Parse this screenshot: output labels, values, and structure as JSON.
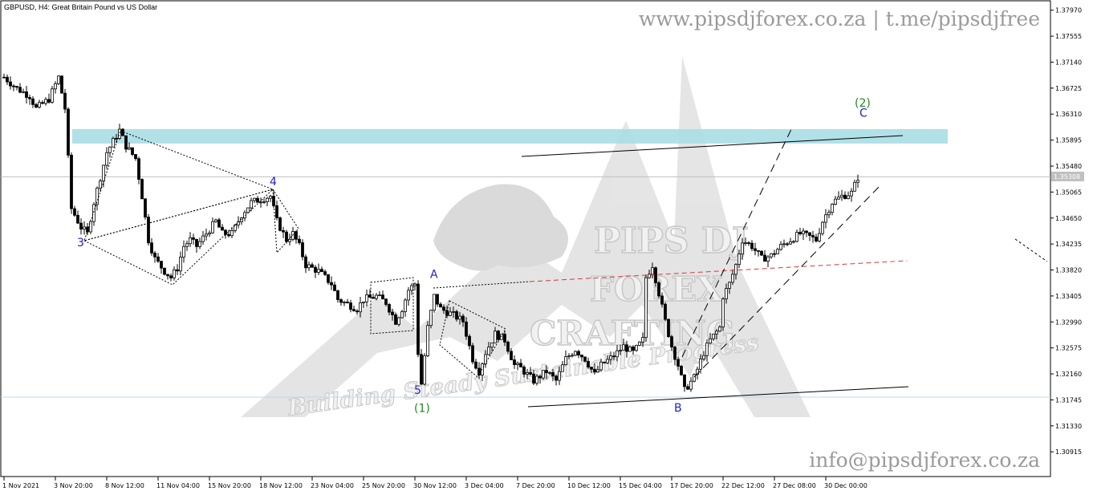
{
  "symbol_label": "GBPUSD, H4:  Great Britain Pound vs US Dollar",
  "watermark_top": "www.pipsdjforex.co.za | t.me/pipsdjfree",
  "watermark_bottom": "info@pipsdjforex.co.za",
  "logo": {
    "line1": "PIPS DJ",
    "line2": "FOREX",
    "line3": "CRAFTING",
    "tagline": "Building Steady Sustainable Progress"
  },
  "colors": {
    "up": "#000000",
    "down": "#000000",
    "zone": "#a9dde4",
    "pivot": "#d43a3a",
    "wave_main": "#2222cc",
    "wave_major": "#1e8a1e"
  },
  "chart_data": {
    "type": "candlestick",
    "ylim": [
      1.3052,
      1.3812
    ],
    "current_price": "1.35308",
    "y_ticks": [
      "1.37970",
      "1.37555",
      "1.37140",
      "1.36725",
      "1.36310",
      "1.35895",
      "1.35480",
      "1.35065",
      "1.34650",
      "1.34235",
      "1.33820",
      "1.33405",
      "1.32990",
      "1.32575",
      "1.32160",
      "1.31745",
      "1.31330",
      "1.30915"
    ],
    "y_tick_values": [
      1.3797,
      1.37555,
      1.3714,
      1.36725,
      1.3631,
      1.35895,
      1.3548,
      1.35065,
      1.3465,
      1.34235,
      1.3382,
      1.33405,
      1.3299,
      1.32575,
      1.3216,
      1.31745,
      1.3133,
      1.30915
    ],
    "x_ticks": [
      "1 Nov 2021",
      "3 Nov 20:00",
      "8 Nov 12:00",
      "11 Nov 04:00",
      "15 Nov 20:00",
      "18 Nov 12:00",
      "23 Nov 04:00",
      "25 Nov 20:00",
      "30 Nov 12:00",
      "3 Dec 04:00",
      "7 Dec 20:00",
      "10 Dec 12:00",
      "15 Dec 04:00",
      "17 Dec 20:00",
      "22 Dec 12:00",
      "27 Dec 08:00",
      "30 Dec 00:00"
    ],
    "x_tick_index": [
      0,
      16,
      32,
      48,
      64,
      80,
      96,
      112,
      128,
      144,
      160,
      176,
      192,
      208,
      224,
      240,
      256
    ],
    "n_bars": 267,
    "anchors": [
      [
        0,
        1.369
      ],
      [
        4,
        1.3672
      ],
      [
        8,
        1.366
      ],
      [
        10,
        1.364
      ],
      [
        14,
        1.3655
      ],
      [
        17,
        1.369
      ],
      [
        19,
        1.364
      ],
      [
        21,
        1.348
      ],
      [
        24,
        1.345
      ],
      [
        26,
        1.344
      ],
      [
        28,
        1.349
      ],
      [
        32,
        1.357
      ],
      [
        36,
        1.3605
      ],
      [
        38,
        1.358
      ],
      [
        41,
        1.356
      ],
      [
        43,
        1.35
      ],
      [
        45,
        1.343
      ],
      [
        47,
        1.34
      ],
      [
        50,
        1.338
      ],
      [
        52,
        1.337
      ],
      [
        54,
        1.3385
      ],
      [
        56,
        1.342
      ],
      [
        58,
        1.343
      ],
      [
        60,
        1.342
      ],
      [
        63,
        1.344
      ],
      [
        66,
        1.346
      ],
      [
        68,
        1.344
      ],
      [
        71,
        1.344
      ],
      [
        74,
        1.347
      ],
      [
        77,
        1.349
      ],
      [
        80,
        1.3495
      ],
      [
        83,
        1.35
      ],
      [
        85,
        1.346
      ],
      [
        88,
        1.343
      ],
      [
        90,
        1.344
      ],
      [
        92,
        1.342
      ],
      [
        94,
        1.339
      ],
      [
        96,
        1.3385
      ],
      [
        98,
        1.338
      ],
      [
        100,
        1.337
      ],
      [
        102,
        1.336
      ],
      [
        104,
        1.3335
      ],
      [
        106,
        1.333
      ],
      [
        110,
        1.332
      ],
      [
        112,
        1.3335
      ],
      [
        116,
        1.334
      ],
      [
        119,
        1.333
      ],
      [
        122,
        1.33
      ],
      [
        124,
        1.332
      ],
      [
        126,
        1.335
      ],
      [
        128,
        1.336
      ],
      [
        129,
        1.325
      ],
      [
        130,
        1.32
      ],
      [
        132,
        1.329
      ],
      [
        134,
        1.334
      ],
      [
        136,
        1.332
      ],
      [
        140,
        1.331
      ],
      [
        143,
        1.33
      ],
      [
        146,
        1.324
      ],
      [
        148,
        1.322
      ],
      [
        150,
        1.325
      ],
      [
        153,
        1.328
      ],
      [
        156,
        1.327
      ],
      [
        159,
        1.323
      ],
      [
        161,
        1.3225
      ],
      [
        163,
        1.3215
      ],
      [
        165,
        1.3205
      ],
      [
        169,
        1.322
      ],
      [
        172,
        1.3205
      ],
      [
        175,
        1.324
      ],
      [
        178,
        1.3255
      ],
      [
        181,
        1.324
      ],
      [
        184,
        1.3215
      ],
      [
        186,
        1.323
      ],
      [
        190,
        1.3245
      ],
      [
        193,
        1.326
      ],
      [
        196,
        1.325
      ],
      [
        199,
        1.327
      ],
      [
        200,
        1.337
      ],
      [
        202,
        1.339
      ],
      [
        204,
        1.3345
      ],
      [
        206,
        1.33
      ],
      [
        208,
        1.326
      ],
      [
        210,
        1.323
      ],
      [
        212,
        1.319
      ],
      [
        215,
        1.321
      ],
      [
        218,
        1.325
      ],
      [
        220,
        1.327
      ],
      [
        223,
        1.329
      ],
      [
        224,
        1.334
      ],
      [
        226,
        1.336
      ],
      [
        228,
        1.339
      ],
      [
        230,
        1.343
      ],
      [
        233,
        1.342
      ],
      [
        236,
        1.34
      ],
      [
        239,
        1.3405
      ],
      [
        242,
        1.342
      ],
      [
        245,
        1.343
      ],
      [
        248,
        1.344
      ],
      [
        251,
        1.3435
      ],
      [
        253,
        1.343
      ],
      [
        255,
        1.346
      ],
      [
        258,
        1.349
      ],
      [
        261,
        1.35
      ],
      [
        264,
        1.3505
      ],
      [
        266,
        1.353
      ]
    ],
    "annotations": [
      {
        "text": "3",
        "color": "blue",
        "bar": 24,
        "price": 1.342
      },
      {
        "text": "4",
        "color": "blue",
        "bar": 84,
        "price": 1.3517
      },
      {
        "text": "5",
        "color": "blue",
        "bar": 129,
        "price": 1.3184
      },
      {
        "text": "(1)",
        "color": "green",
        "bar": 129,
        "price": 1.3155
      },
      {
        "text": "A",
        "color": "blue",
        "bar": 134,
        "price": 1.3369
      },
      {
        "text": "B",
        "color": "blue",
        "bar": 210,
        "price": 1.3156
      },
      {
        "text": "(2)",
        "color": "green",
        "bar": 267,
        "price": 1.3643
      },
      {
        "text": "C",
        "color": "blue",
        "bar": 267,
        "price": 1.3627
      }
    ],
    "zone": {
      "from_bar": 22,
      "to_bar": 294,
      "top": 1.3607,
      "bottom": 1.3584
    },
    "grid": false
  }
}
